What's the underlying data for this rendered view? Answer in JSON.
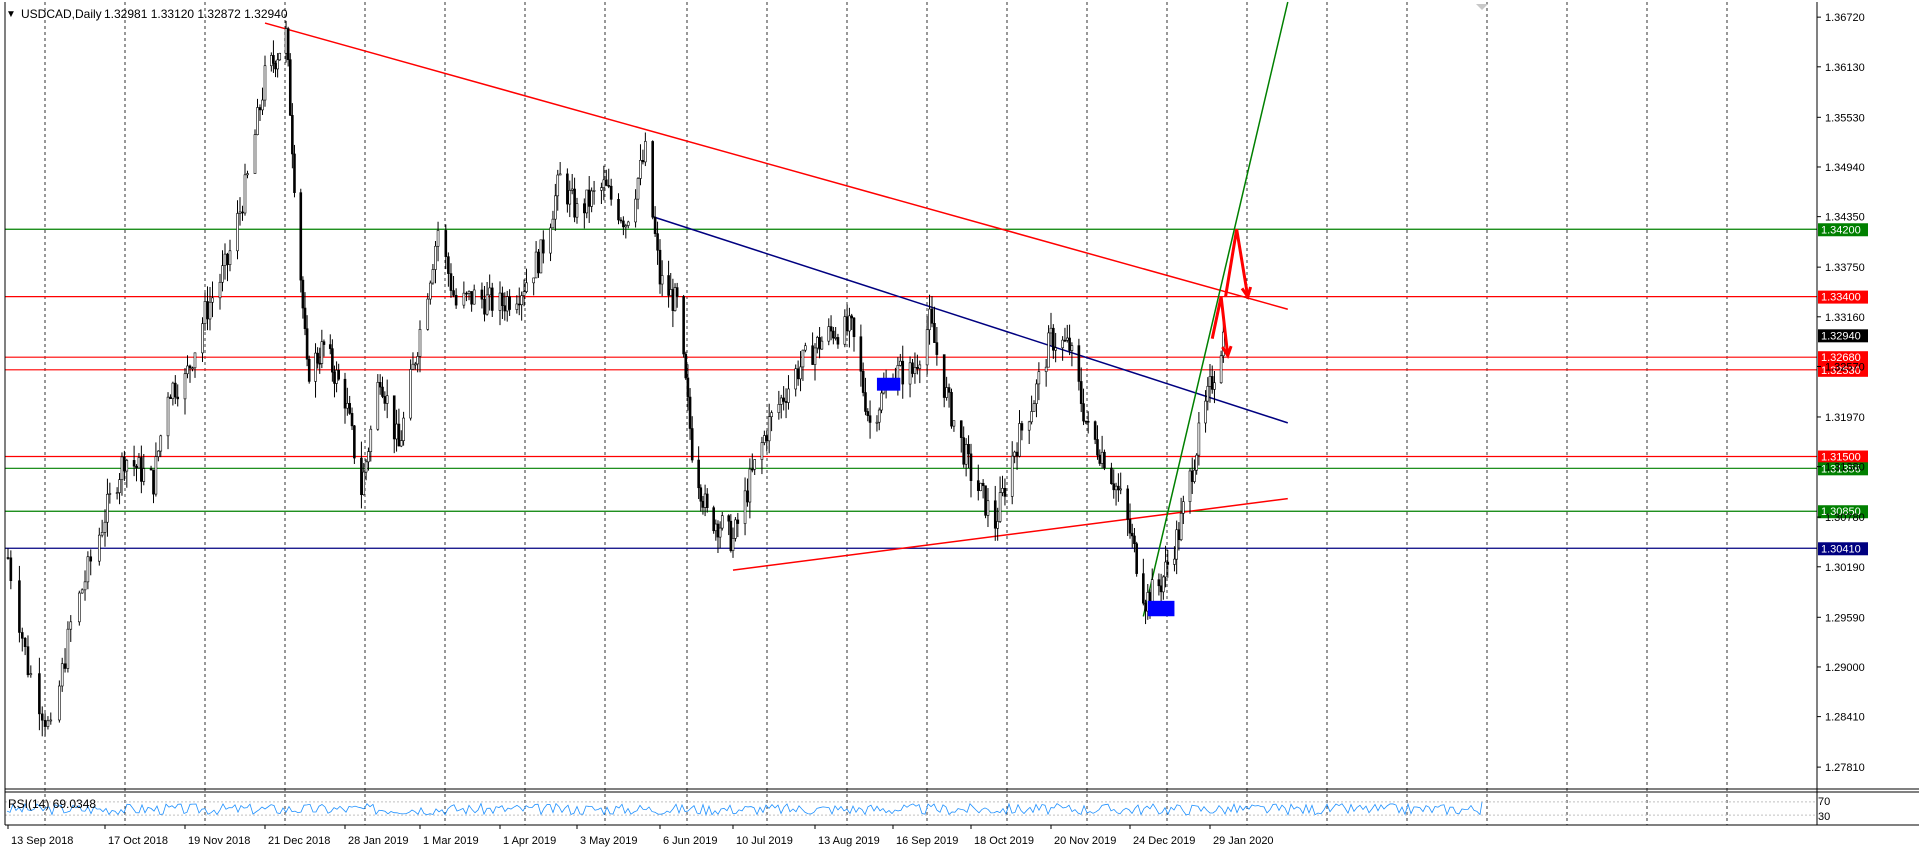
{
  "header": {
    "triangle_glyph": "▼",
    "symbol_label": "USDCAD,Daily",
    "ohlc": "1.32981 1.33120 1.32872 1.32940"
  },
  "rsi_panel": {
    "label": "RSI(14) 69.0348",
    "levels": [
      "70",
      "30"
    ]
  },
  "colors": {
    "bull": "#000000",
    "bear": "#000000",
    "rsi_line": "#1e90ff",
    "support_red": "#ff0000",
    "support_green": "#008000",
    "support_blue": "#000080",
    "trend_green": "#008000",
    "trend_red": "#ff0000",
    "trend_blue": "#000080",
    "zone_blue": "#0000ff",
    "arrows": "#ff0000"
  },
  "chart_data": {
    "type": "candlestick",
    "symbol": "USDCAD",
    "timeframe": "Daily",
    "ylim": [
      1.2755,
      1.369
    ],
    "price_ticks": [
      "1.36720",
      "1.36130",
      "1.35530",
      "1.34940",
      "1.34350",
      "1.33750",
      "1.33160",
      "1.32570",
      "1.31970",
      "1.31380",
      "1.30780",
      "1.30190",
      "1.29590",
      "1.29000",
      "1.28410",
      "1.27810"
    ],
    "date_ticks": [
      "13 Sep 2018",
      "17 Oct 2018",
      "19 Nov 2018",
      "21 Dec 2018",
      "28 Jan 2019",
      "1 Mar 2019",
      "1 Apr 2019",
      "3 May 2019",
      "6 Jun 2019",
      "10 Jul 2019",
      "13 Aug 2019",
      "16 Sep 2019",
      "18 Oct 2019",
      "20 Nov 2019",
      "24 Dec 2019",
      "29 Jan 2020"
    ],
    "price_path": [
      [
        "13 Sep 2018",
        1.303
      ],
      [
        "20 Sep 2018",
        1.29
      ],
      [
        "28 Sep 2018",
        1.282
      ],
      [
        "5 Oct 2018",
        1.295
      ],
      [
        "17 Oct 2018",
        1.308
      ],
      [
        "25 Oct 2018",
        1.315
      ],
      [
        "6 Nov 2018",
        1.312
      ],
      [
        "12 Nov 2018",
        1.323
      ],
      [
        "19 Nov 2018",
        1.324
      ],
      [
        "27 Nov 2018",
        1.332
      ],
      [
        "6 Dec 2018",
        1.338
      ],
      [
        "14 Dec 2018",
        1.348
      ],
      [
        "21 Dec 2018",
        1.36
      ],
      [
        "31 Dec 2018",
        1.365
      ],
      [
        "4 Jan 2019",
        1.348
      ],
      [
        "10 Jan 2019",
        1.325
      ],
      [
        "18 Jan 2019",
        1.328
      ],
      [
        "28 Jan 2019",
        1.322
      ],
      [
        "4 Feb 2019",
        1.311
      ],
      [
        "12 Feb 2019",
        1.325
      ],
      [
        "20 Feb 2019",
        1.316
      ],
      [
        "1 Mar 2019",
        1.33
      ],
      [
        "8 Mar 2019",
        1.342
      ],
      [
        "15 Mar 2019",
        1.333
      ],
      [
        "22 Mar 2019",
        1.334
      ],
      [
        "1 Apr 2019",
        1.333
      ],
      [
        "10 Apr 2019",
        1.335
      ],
      [
        "18 Apr 2019",
        1.339
      ],
      [
        "26 Apr 2019",
        1.348
      ],
      [
        "3 May 2019",
        1.344
      ],
      [
        "14 May 2019",
        1.347
      ],
      [
        "23 May 2019",
        1.343
      ],
      [
        "31 May 2019",
        1.351
      ],
      [
        "6 Jun 2019",
        1.336
      ],
      [
        "14 Jun 2019",
        1.333
      ],
      [
        "21 Jun 2019",
        1.316
      ],
      [
        "28 Jun 2019",
        1.308
      ],
      [
        "4 Jul 2019",
        1.307
      ],
      [
        "10 Jul 2019",
        1.305
      ],
      [
        "17 Jul 2019",
        1.312
      ],
      [
        "25 Jul 2019",
        1.319
      ],
      [
        "5 Aug 2019",
        1.325
      ],
      [
        "13 Aug 2019",
        1.328
      ],
      [
        "21 Aug 2019",
        1.33
      ],
      [
        "29 Aug 2019",
        1.33
      ],
      [
        "6 Sep 2019",
        1.319
      ],
      [
        "16 Sep 2019",
        1.325
      ],
      [
        "24 Sep 2019",
        1.325
      ],
      [
        "1 Oct 2019",
        1.331
      ],
      [
        "9 Oct 2019",
        1.321
      ],
      [
        "18 Oct 2019",
        1.313
      ],
      [
        "28 Oct 2019",
        1.307
      ],
      [
        "5 Nov 2019",
        1.316
      ],
      [
        "13 Nov 2019",
        1.322
      ],
      [
        "20 Nov 2019",
        1.329
      ],
      [
        "28 Nov 2019",
        1.328
      ],
      [
        "6 Dec 2019",
        1.318
      ],
      [
        "13 Dec 2019",
        1.315
      ],
      [
        "20 Dec 2019",
        1.31
      ],
      [
        "24 Dec 2019",
        1.306
      ],
      [
        "31 Dec 2019",
        1.298
      ],
      [
        "7 Jan 2020",
        1.3
      ],
      [
        "15 Jan 2020",
        1.306
      ],
      [
        "22 Jan 2020",
        1.315
      ],
      [
        "29 Jan 2020",
        1.323
      ],
      [
        "4 Feb 2020",
        1.3294
      ]
    ],
    "horizontal_levels": [
      {
        "price": 1.342,
        "label": "1.34200",
        "color": "#008000"
      },
      {
        "price": 1.334,
        "label": "1.33400",
        "color": "#ff0000"
      },
      {
        "price": 1.3268,
        "label": "1.32680",
        "color": "#ff0000"
      },
      {
        "price": 1.3253,
        "label": "1.32530",
        "color": "#ff0000"
      },
      {
        "price": 1.315,
        "label": "1.31500",
        "color": "#ff0000"
      },
      {
        "price": 1.3136,
        "label": "1.31356",
        "color": "#008000"
      },
      {
        "price": 1.3085,
        "label": "1.30850",
        "color": "#008000"
      },
      {
        "price": 1.3041,
        "label": "1.30410",
        "color": "#000080"
      }
    ],
    "current_price": {
      "price": 1.3294,
      "label": "1.32940"
    },
    "trendlines": [
      {
        "from": [
          "21 Dec 2018",
          1.3665
        ],
        "to": [
          "4 Mar 2020",
          1.3325
        ],
        "color": "#ff0000"
      },
      {
        "from": [
          "3 Jun 2019",
          1.3435
        ],
        "to": [
          "4 Mar 2020",
          1.319
        ],
        "color": "#000080"
      },
      {
        "from": [
          "10 Jul 2019",
          1.3015
        ],
        "to": [
          "4 Mar 2020",
          1.31
        ],
        "color": "#ff0000"
      },
      {
        "from": [
          "30 Dec 2019",
          1.296
        ],
        "to": [
          "4 Mar 2020",
          1.369
        ],
        "color": "#008000"
      }
    ],
    "zones": [
      {
        "from": [
          "9 Sep 2019",
          1.3233
        ],
        "to": [
          "19 Sep 2019",
          1.324
        ],
        "color": "#0000ff"
      },
      {
        "from": [
          "1 Jan 2020",
          1.2965
        ],
        "to": [
          "13 Jan 2020",
          1.2975
        ],
        "color": "#0000ff"
      }
    ],
    "scenario_arrows": [
      {
        "path": [
          [
            "30 Jan 2020",
            1.329
          ],
          [
            "3 Feb 2020",
            1.334
          ],
          [
            "6 Feb 2020",
            1.327
          ]
        ]
      },
      {
        "path": [
          [
            "5 Feb 2020",
            1.334
          ],
          [
            "10 Feb 2020",
            1.342
          ],
          [
            "15 Feb 2020",
            1.334
          ]
        ]
      }
    ],
    "rsi": {
      "period": 14,
      "value": 69.0348,
      "ylim": [
        0,
        100
      ],
      "levels": [
        70,
        30
      ]
    }
  }
}
